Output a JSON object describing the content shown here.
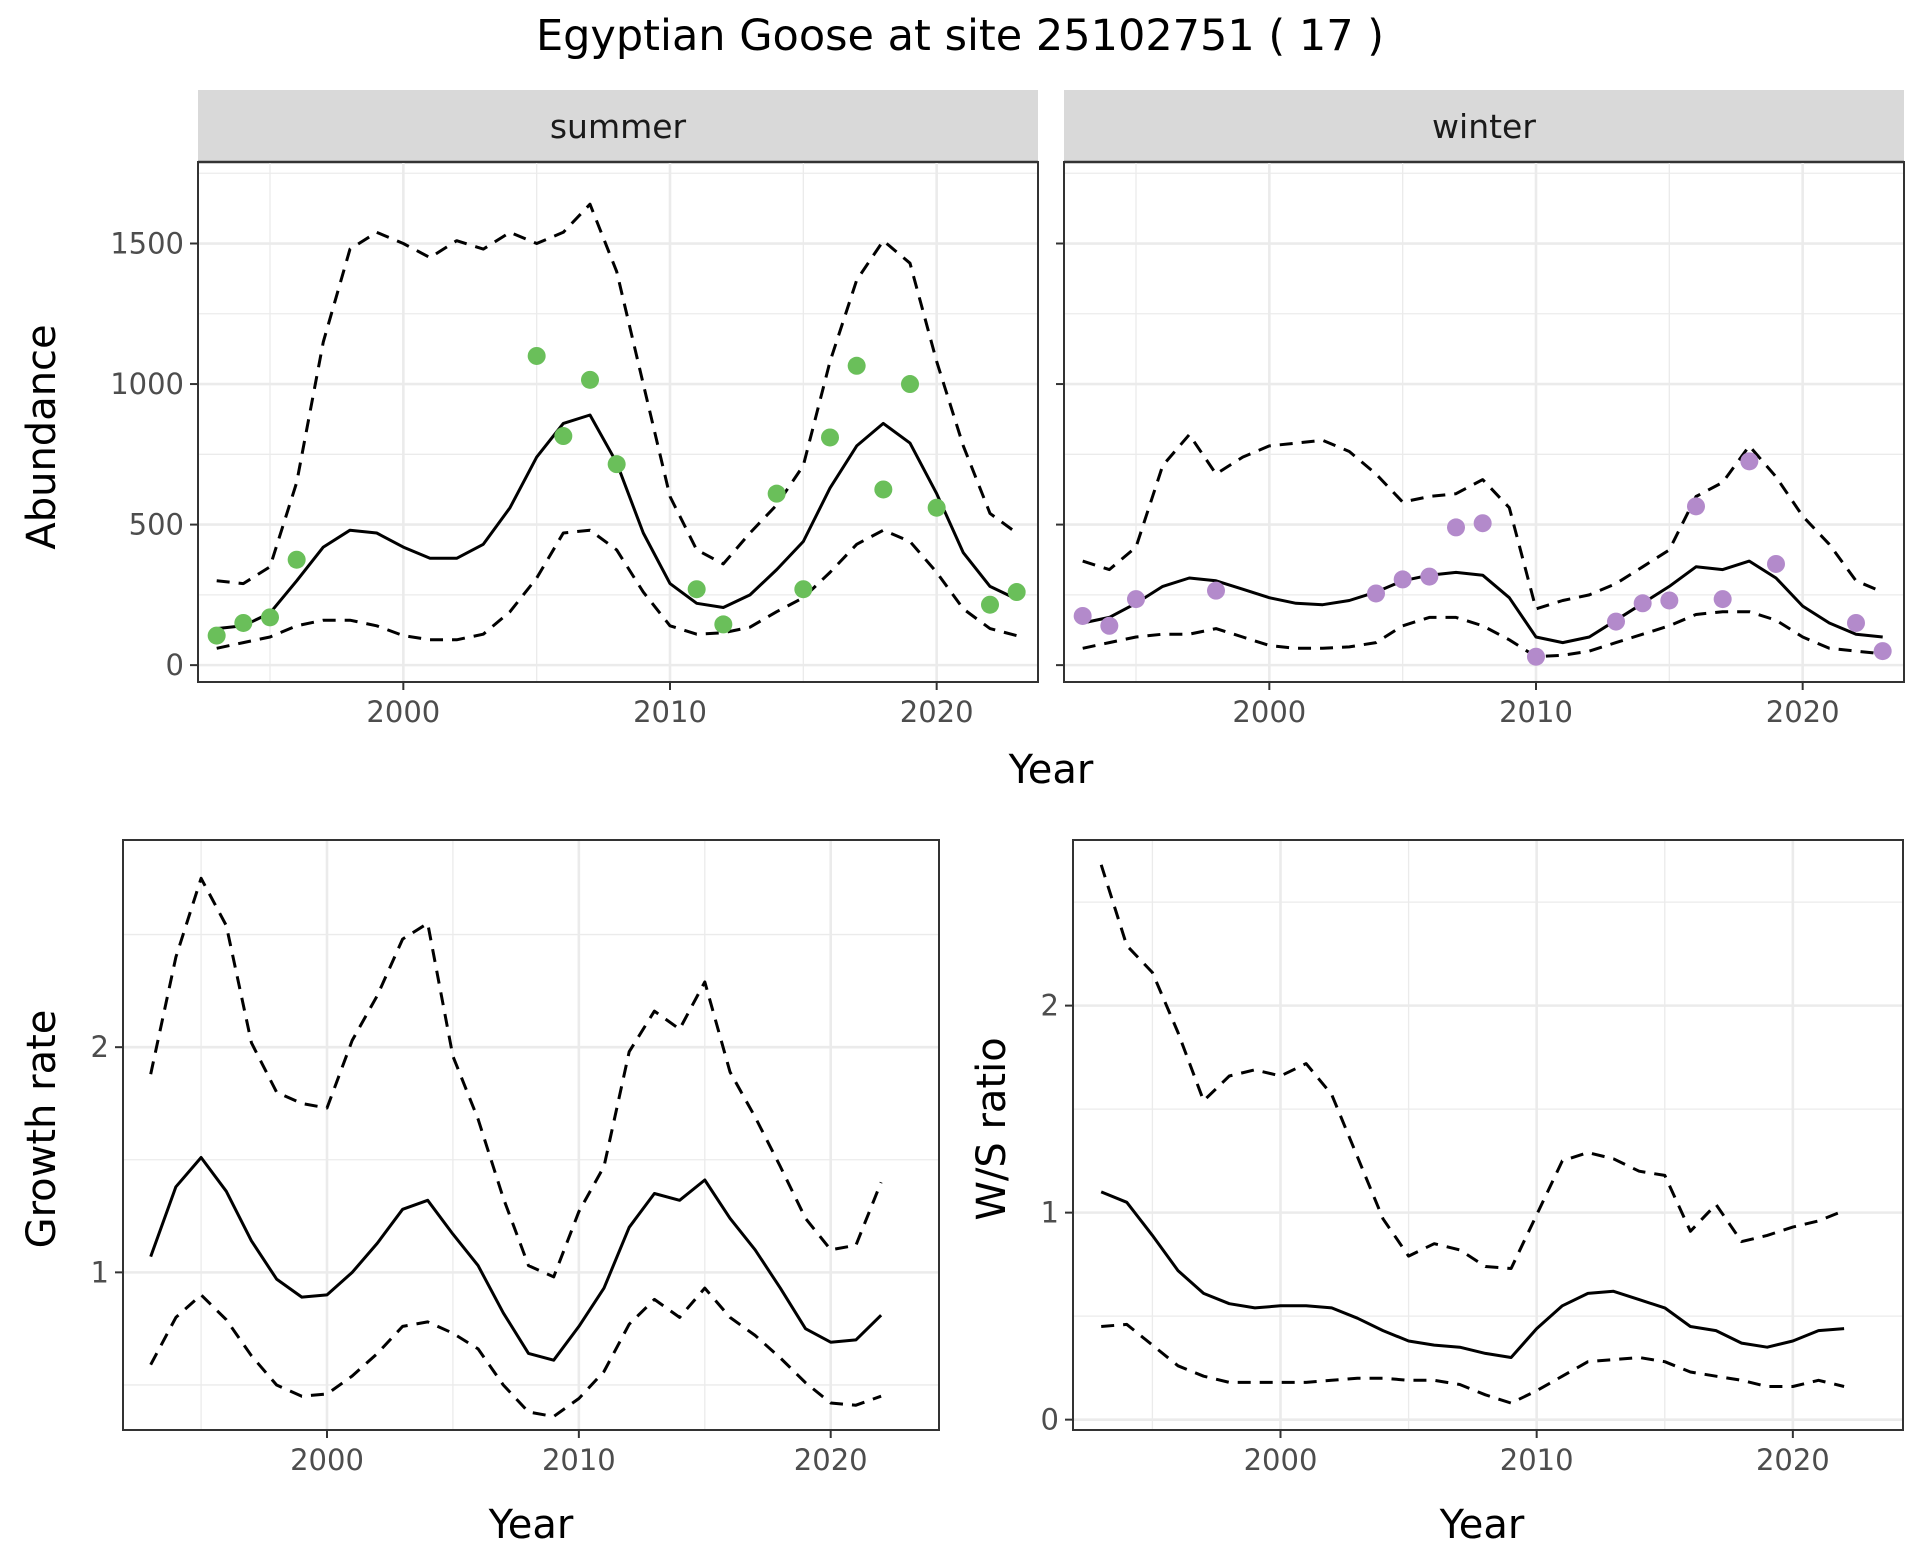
{
  "title": "Egyptian Goose at site 25102751 ( 17 )",
  "colors": {
    "summer_points": "#6abf5a",
    "winter_points": "#b38acb",
    "lines": "#000000",
    "strip_fill": "#d9d9d9",
    "grid": "#ebebeb"
  },
  "chart_data": [
    {
      "type": "line",
      "facet": "summer",
      "xlabel": "Year",
      "ylabel": "Abundance",
      "xlim": [
        1992.3,
        2023.8
      ],
      "ylim": [
        -60,
        1790
      ],
      "xticks": [
        2000,
        2010,
        2020
      ],
      "yticks": [
        0,
        500,
        1000,
        1500
      ],
      "x": [
        1993,
        1994,
        1995,
        1996,
        1997,
        1998,
        1999,
        2000,
        2001,
        2002,
        2003,
        2004,
        2005,
        2006,
        2007,
        2008,
        2009,
        2010,
        2011,
        2012,
        2013,
        2014,
        2015,
        2016,
        2017,
        2018,
        2019,
        2020,
        2021,
        2022,
        2023
      ],
      "series": [
        {
          "role": "estimate",
          "style": "solid",
          "values": [
            130,
            140,
            185,
            300,
            420,
            480,
            470,
            420,
            380,
            380,
            430,
            560,
            740,
            860,
            890,
            720,
            470,
            290,
            220,
            205,
            250,
            340,
            440,
            630,
            780,
            860,
            790,
            610,
            400,
            280,
            235
          ]
        },
        {
          "role": "upper",
          "style": "dashed",
          "values": [
            300,
            290,
            350,
            650,
            1150,
            1480,
            1540,
            1500,
            1450,
            1510,
            1480,
            1540,
            1500,
            1540,
            1640,
            1400,
            1000,
            600,
            410,
            360,
            470,
            570,
            710,
            1080,
            1370,
            1510,
            1430,
            1080,
            780,
            540,
            470
          ]
        },
        {
          "role": "lower",
          "style": "dashed",
          "values": [
            60,
            80,
            100,
            140,
            160,
            160,
            140,
            105,
            90,
            90,
            110,
            190,
            310,
            470,
            480,
            410,
            260,
            140,
            110,
            115,
            135,
            190,
            240,
            330,
            430,
            480,
            440,
            330,
            200,
            130,
            105
          ]
        }
      ],
      "points": {
        "x": [
          1993,
          1994,
          1995,
          1996,
          2005,
          2006,
          2007,
          2008,
          2011,
          2012,
          2014,
          2015,
          2016,
          2017,
          2018,
          2019,
          2020,
          2022,
          2023
        ],
        "y": [
          105,
          150,
          170,
          375,
          1100,
          815,
          1015,
          715,
          270,
          145,
          610,
          270,
          810,
          1065,
          625,
          1000,
          560,
          215,
          260
        ]
      }
    },
    {
      "type": "line",
      "facet": "winter",
      "xlabel": "Year",
      "ylabel": "Abundance",
      "xlim": [
        1992.3,
        2023.8
      ],
      "ylim": [
        -60,
        1790
      ],
      "xticks": [
        2000,
        2010,
        2020
      ],
      "yticks": [
        0,
        500,
        1000,
        1500
      ],
      "x": [
        1993,
        1994,
        1995,
        1996,
        1997,
        1998,
        1999,
        2000,
        2001,
        2002,
        2003,
        2004,
        2005,
        2006,
        2007,
        2008,
        2009,
        2010,
        2011,
        2012,
        2013,
        2014,
        2015,
        2016,
        2017,
        2018,
        2019,
        2020,
        2021,
        2022,
        2023
      ],
      "series": [
        {
          "role": "estimate",
          "style": "solid",
          "values": [
            150,
            170,
            220,
            280,
            310,
            300,
            270,
            240,
            220,
            215,
            230,
            260,
            300,
            320,
            330,
            320,
            240,
            100,
            80,
            100,
            160,
            220,
            280,
            350,
            340,
            370,
            310,
            210,
            150,
            110,
            100
          ]
        },
        {
          "role": "upper",
          "style": "dashed",
          "values": [
            370,
            340,
            420,
            710,
            820,
            680,
            740,
            780,
            790,
            800,
            760,
            680,
            580,
            600,
            610,
            660,
            560,
            200,
            230,
            250,
            290,
            350,
            410,
            600,
            650,
            780,
            670,
            530,
            430,
            300,
            260
          ]
        },
        {
          "role": "lower",
          "style": "dashed",
          "values": [
            60,
            80,
            100,
            110,
            110,
            130,
            100,
            70,
            60,
            60,
            65,
            80,
            140,
            170,
            170,
            140,
            90,
            30,
            35,
            50,
            80,
            110,
            140,
            180,
            190,
            190,
            160,
            100,
            60,
            50,
            40
          ]
        }
      ],
      "points": {
        "x": [
          1993,
          1994,
          1995,
          1998,
          2004,
          2005,
          2006,
          2007,
          2008,
          2010,
          2013,
          2014,
          2015,
          2016,
          2017,
          2018,
          2019,
          2022,
          2023
        ],
        "y": [
          175,
          140,
          235,
          265,
          255,
          305,
          315,
          490,
          505,
          30,
          155,
          220,
          230,
          565,
          235,
          725,
          360,
          150,
          50
        ]
      }
    },
    {
      "type": "line",
      "xlabel": "Year",
      "ylabel": "Growth rate",
      "xlim": [
        1991.9,
        2024.3
      ],
      "ylim": [
        0.3,
        2.92
      ],
      "xticks": [
        2000,
        2010,
        2020
      ],
      "yticks": [
        1,
        2
      ],
      "x": [
        1993,
        1994,
        1995,
        1996,
        1997,
        1998,
        1999,
        2000,
        2001,
        2002,
        2003,
        2004,
        2005,
        2006,
        2007,
        2008,
        2009,
        2010,
        2011,
        2012,
        2013,
        2014,
        2015,
        2016,
        2017,
        2018,
        2019,
        2020,
        2021,
        2022
      ],
      "series": [
        {
          "role": "estimate",
          "style": "solid",
          "values": [
            1.07,
            1.38,
            1.51,
            1.36,
            1.14,
            0.97,
            0.89,
            0.9,
            1.0,
            1.13,
            1.28,
            1.32,
            1.17,
            1.03,
            0.82,
            0.64,
            0.61,
            0.76,
            0.93,
            1.2,
            1.35,
            1.32,
            1.41,
            1.24,
            1.1,
            0.93,
            0.75,
            0.69,
            0.7,
            0.81
          ]
        },
        {
          "role": "upper",
          "style": "dashed",
          "values": [
            1.88,
            2.4,
            2.75,
            2.54,
            2.02,
            1.8,
            1.75,
            1.73,
            2.03,
            2.23,
            2.48,
            2.55,
            1.96,
            1.68,
            1.33,
            1.03,
            0.98,
            1.27,
            1.47,
            1.98,
            2.16,
            2.08,
            2.29,
            1.89,
            1.69,
            1.47,
            1.24,
            1.1,
            1.12,
            1.4
          ]
        },
        {
          "role": "lower",
          "style": "dashed",
          "values": [
            0.59,
            0.8,
            0.9,
            0.79,
            0.63,
            0.5,
            0.45,
            0.46,
            0.54,
            0.64,
            0.76,
            0.78,
            0.73,
            0.66,
            0.5,
            0.38,
            0.36,
            0.44,
            0.56,
            0.77,
            0.88,
            0.8,
            0.93,
            0.8,
            0.72,
            0.62,
            0.51,
            0.42,
            0.41,
            0.45
          ]
        }
      ]
    },
    {
      "type": "line",
      "xlabel": "Year",
      "ylabel": "W/S ratio",
      "xlim": [
        1991.9,
        2024.3
      ],
      "ylim": [
        -0.05,
        2.8
      ],
      "xticks": [
        2000,
        2010,
        2020
      ],
      "yticks": [
        0,
        1,
        2
      ],
      "x": [
        1993,
        1994,
        1995,
        1996,
        1997,
        1998,
        1999,
        2000,
        2001,
        2002,
        2003,
        2004,
        2005,
        2006,
        2007,
        2008,
        2009,
        2010,
        2011,
        2012,
        2013,
        2014,
        2015,
        2016,
        2017,
        2018,
        2019,
        2020,
        2021,
        2022
      ],
      "series": [
        {
          "role": "estimate",
          "style": "solid",
          "values": [
            1.1,
            1.05,
            0.89,
            0.72,
            0.61,
            0.56,
            0.54,
            0.55,
            0.55,
            0.54,
            0.49,
            0.43,
            0.38,
            0.36,
            0.35,
            0.32,
            0.3,
            0.44,
            0.55,
            0.61,
            0.62,
            0.58,
            0.54,
            0.45,
            0.43,
            0.37,
            0.35,
            0.38,
            0.43,
            0.44
          ]
        },
        {
          "role": "upper",
          "style": "dashed",
          "values": [
            2.68,
            2.29,
            2.16,
            1.87,
            1.54,
            1.66,
            1.69,
            1.66,
            1.72,
            1.57,
            1.27,
            0.97,
            0.79,
            0.85,
            0.82,
            0.74,
            0.73,
            0.99,
            1.25,
            1.29,
            1.26,
            1.2,
            1.18,
            0.91,
            1.04,
            0.86,
            0.89,
            0.93,
            0.96,
            1.01
          ]
        },
        {
          "role": "lower",
          "style": "dashed",
          "values": [
            0.45,
            0.46,
            0.36,
            0.26,
            0.21,
            0.18,
            0.18,
            0.18,
            0.18,
            0.19,
            0.2,
            0.2,
            0.19,
            0.19,
            0.17,
            0.12,
            0.08,
            0.14,
            0.21,
            0.28,
            0.29,
            0.3,
            0.28,
            0.23,
            0.21,
            0.19,
            0.16,
            0.16,
            0.19,
            0.16
          ]
        }
      ]
    }
  ]
}
